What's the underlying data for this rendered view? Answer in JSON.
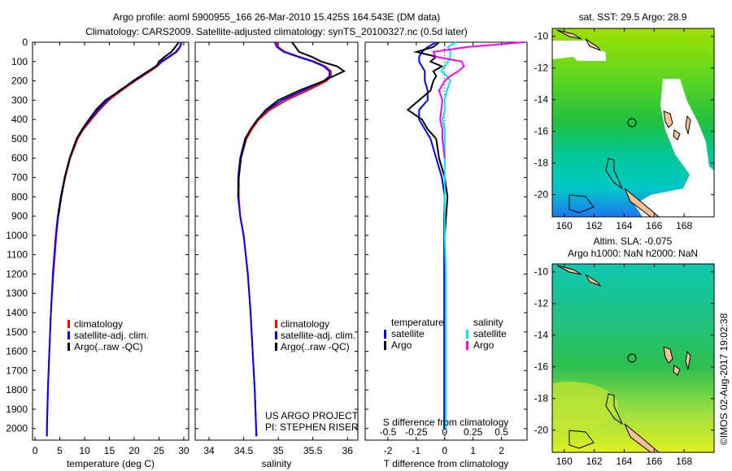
{
  "title": {
    "line1": "Argo profile: aoml 5900955_166 26-Mar-2010 15.425S 164.543E (DM data)",
    "line2": "Climatology: CARS2009. Satellite-adjusted climatology: synTS_20100327.nc (0.5d later)"
  },
  "colors": {
    "climatology": "#ff0000",
    "satellite": "#0000ff",
    "argo": "#000000",
    "sal_satellite": "#00e5ee",
    "sal_argo": "#ff00ff"
  },
  "chart_data": [
    {
      "type": "line",
      "xlabel": "temperature (deg C)",
      "ylabel": "",
      "xlim": [
        -0.5,
        31
      ],
      "ylim": [
        2060,
        0
      ],
      "xticks": [
        0,
        5,
        10,
        15,
        20,
        25,
        30
      ],
      "yticks": [
        0,
        100,
        200,
        300,
        400,
        500,
        600,
        700,
        800,
        900,
        1000,
        1100,
        1200,
        1300,
        1400,
        1500,
        1600,
        1700,
        1800,
        1900,
        2000
      ],
      "legend": [
        "climatology",
        "satellite-adj. clim.",
        "Argo(..raw -QC)"
      ],
      "legend_position": "lower-center",
      "depth": [
        0,
        25,
        50,
        75,
        100,
        125,
        150,
        200,
        250,
        300,
        350,
        400,
        450,
        500,
        600,
        700,
        800,
        900,
        1000,
        1200,
        1400,
        1600,
        1800,
        2000,
        2040
      ],
      "series": [
        {
          "name": "climatology",
          "values": [
            29.6,
            29.3,
            28.6,
            27.2,
            25.7,
            24.6,
            23.2,
            20.2,
            17.4,
            14.9,
            13.0,
            11.4,
            9.8,
            8.6,
            7.1,
            6.1,
            5.3,
            4.7,
            4.3,
            3.7,
            3.2,
            2.9,
            2.6,
            2.4,
            2.4
          ]
        },
        {
          "name": "satellite-adj. clim.",
          "values": [
            29.5,
            29.2,
            28.4,
            27.0,
            25.5,
            24.3,
            22.9,
            20.0,
            17.0,
            14.6,
            12.7,
            11.1,
            9.6,
            8.4,
            7.0,
            6.0,
            5.2,
            4.6,
            4.2,
            3.6,
            3.2,
            2.9,
            2.6,
            2.4,
            2.4
          ]
        },
        {
          "name": "Argo(..raw -QC)",
          "values": [
            29.0,
            28.3,
            27.5,
            26.2,
            25.0,
            24.5,
            22.8,
            19.8,
            17.2,
            14.2,
            12.3,
            10.9,
            9.5,
            8.4,
            7.0,
            6.0,
            5.3,
            4.7
          ]
        }
      ],
      "annotation": []
    },
    {
      "type": "line",
      "xlabel": "salinity",
      "xlim": [
        33.8,
        36.15
      ],
      "ylim": [
        2060,
        0
      ],
      "xticks": [
        34,
        34.5,
        35,
        35.5,
        36
      ],
      "legend": [
        "climatology",
        "satellite-adj. clim.",
        "Argo(..raw -QC)"
      ],
      "depth": [
        0,
        25,
        50,
        75,
        100,
        125,
        150,
        175,
        200,
        250,
        300,
        350,
        400,
        450,
        500,
        600,
        700,
        800,
        900,
        1000,
        1200,
        1400,
        1600,
        1800,
        2000,
        2040
      ],
      "series": [
        {
          "name": "climatology",
          "values": [
            34.98,
            35.0,
            35.1,
            35.3,
            35.52,
            35.68,
            35.76,
            35.76,
            35.7,
            35.42,
            35.12,
            34.88,
            34.72,
            34.62,
            34.54,
            34.46,
            34.43,
            34.43,
            34.45,
            34.5,
            34.56,
            34.6,
            34.63,
            34.66,
            34.68,
            34.69
          ]
        },
        {
          "name": "satellite-adj. clim.",
          "values": [
            34.95,
            34.98,
            35.08,
            35.28,
            35.5,
            35.66,
            35.74,
            35.74,
            35.66,
            35.36,
            35.06,
            34.84,
            34.7,
            34.6,
            34.52,
            34.45,
            34.42,
            34.42,
            34.45,
            34.5,
            34.56,
            34.6,
            34.63,
            34.66,
            34.68,
            34.68
          ]
        },
        {
          "name": "Argo(..raw -QC)",
          "values": [
            35.2,
            35.25,
            35.3,
            35.48,
            35.62,
            35.85,
            35.95,
            35.8,
            35.66,
            35.3,
            35.0,
            34.82,
            34.7,
            34.6,
            34.53,
            34.46,
            34.43,
            34.42
          ]
        }
      ],
      "annotation": [
        "US ARGO PROJECT",
        "PI: STEPHEN RISER"
      ]
    },
    {
      "type": "line",
      "xlabel": "T difference from climatology",
      "xlabel2": "S difference from climatology",
      "xlim": [
        -2.8,
        2.9
      ],
      "xticks": [
        -2,
        -1,
        0,
        1,
        2
      ],
      "xticks2": [
        -0.5,
        -0.25,
        0,
        0.25,
        0.5
      ],
      "xticks2_labels": [
        "-0.5",
        "-0.25",
        "0",
        "0.25",
        "0.5"
      ],
      "ylim": [
        2060,
        0
      ],
      "legend_headers": [
        "temperature",
        "salinity"
      ],
      "legend": [
        "satellite",
        "Argo",
        "satellite",
        "Argo"
      ],
      "depth": [
        0,
        25,
        50,
        75,
        100,
        125,
        150,
        175,
        200,
        250,
        300,
        350,
        400,
        450,
        500,
        600,
        700,
        800,
        900,
        1000,
        1200,
        1400,
        1600,
        1800,
        2000
      ],
      "series": [
        {
          "name": "temperature satellite",
          "values": [
            -0.3,
            -0.6,
            -0.8,
            -0.9,
            -0.9,
            -0.8,
            -0.7,
            -0.7,
            -0.7,
            -0.6,
            -0.6,
            -0.9,
            -0.9,
            -0.7,
            -0.5,
            -0.3,
            -0.1,
            0.0,
            -0.02,
            -0.02,
            -0.02,
            -0.02,
            -0.02,
            -0.02,
            -0.02
          ]
        },
        {
          "name": "temperature Argo",
          "values": [
            -0.2,
            -0.4,
            -1.0,
            -0.3,
            -0.5,
            -0.1,
            -0.4,
            -0.3,
            -0.4,
            -0.5,
            -0.9,
            -1.3,
            -0.8,
            -0.6,
            -0.3,
            -0.2,
            0.0,
            0.1,
            0.05,
            0.0
          ]
        },
        {
          "name": "salinity satellite",
          "values": [
            0.1,
            0.03,
            0.05,
            0.05,
            0.03,
            0.0,
            -0.03,
            0.02,
            0.05,
            0.02,
            0.0,
            0.0,
            -0.02,
            0.0,
            0.0,
            0.0,
            0.0,
            0.0,
            0.0,
            0.0,
            0.01,
            0.01,
            0.01,
            0.01,
            0.01
          ]
        },
        {
          "name": "salinity Argo",
          "values": [
            0.7,
            0.2,
            -0.1,
            -0.08,
            0.15,
            0.17,
            0.12,
            0.05,
            0.0,
            -0.05,
            -0.02,
            -0.03,
            -0.04,
            -0.02,
            -0.02,
            0.0
          ]
        }
      ]
    }
  ],
  "maps": [
    {
      "title": "sat. SST: 29.5 Argo: 28.9",
      "lon_ticks": [
        "160",
        "162",
        "164",
        "166",
        "168"
      ],
      "lat_ticks": [
        "-10",
        "-12",
        "-14",
        "-16",
        "-18",
        "-20"
      ]
    },
    {
      "title1": "Altim. SLA: -0.075",
      "title2": "Argo h1000: NaN h2000: NaN",
      "lon_ticks": [
        "160",
        "162",
        "164",
        "166",
        "168"
      ],
      "lat_ticks": [
        "-10",
        "-12",
        "-14",
        "-16",
        "-18",
        "-20"
      ]
    }
  ],
  "profile_location": {
    "lon": 164.543,
    "lat": -15.425
  },
  "credit": "©IMOS 02-Aug-2017 19:02:38"
}
